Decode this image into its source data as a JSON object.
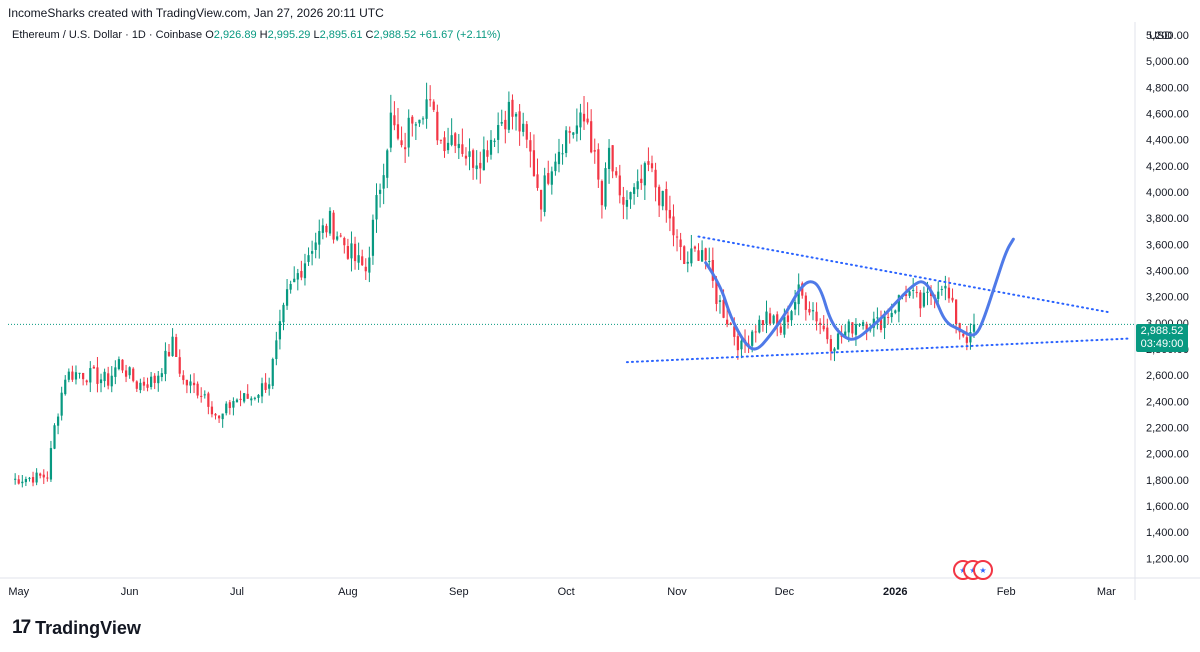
{
  "header": {
    "text": "IncomeSharks created with TradingView.com, Jan 27, 2026 20:11 UTC"
  },
  "symbol": {
    "name": "Ethereum / U.S. Dollar · 1D · Coinbase",
    "o_label": "O",
    "o": "2,926.89",
    "h_label": "H",
    "h": "2,995.29",
    "l_label": "L",
    "l": "2,895.61",
    "c_label": "C",
    "c": "2,988.52",
    "change": "+61.67 (+2.11%)"
  },
  "currency": "USD",
  "last_price": {
    "price": "2,988.52",
    "countdown": "03:49:00"
  },
  "colors": {
    "up": "#089981",
    "down": "#f23645",
    "line": "#2962ff",
    "curve": "#4f7ae8"
  },
  "footer": {
    "brand": "TradingView"
  },
  "chart_data": {
    "type": "candlestick",
    "title": "Ethereum / U.S. Dollar · 1D · Coinbase",
    "ylabel": "USD",
    "ylim": [
      1050,
      5300
    ],
    "y_ticks": [
      "1,200.00",
      "1,400.00",
      "1,600.00",
      "1,800.00",
      "2,000.00",
      "2,200.00",
      "2,400.00",
      "2,600.00",
      "2,800.00",
      "3,000.00",
      "3,200.00",
      "3,400.00",
      "3,600.00",
      "3,800.00",
      "4,000.00",
      "4,200.00",
      "4,400.00",
      "4,600.00",
      "4,800.00",
      "5,000.00",
      "5,200.00"
    ],
    "y_tick_values": [
      1200,
      1400,
      1600,
      1800,
      2000,
      2200,
      2400,
      2600,
      2800,
      3000,
      3200,
      3400,
      3600,
      3800,
      4000,
      4200,
      4400,
      4600,
      4800,
      5000,
      5200
    ],
    "x_labels": [
      "May",
      "Jun",
      "Jul",
      "Aug",
      "Sep",
      "Oct",
      "Nov",
      "Dec",
      "2026",
      "Feb",
      "Mar"
    ],
    "x_label_days": [
      0,
      31,
      61,
      92,
      123,
      153,
      184,
      214,
      245,
      276,
      304
    ],
    "x_range_days": [
      -3,
      312
    ],
    "close_series_anchors": [
      [
        -2,
        1800
      ],
      [
        8,
        1830
      ],
      [
        10,
        2200
      ],
      [
        13,
        2600
      ],
      [
        17,
        2620
      ],
      [
        25,
        2560
      ],
      [
        28,
        2700
      ],
      [
        33,
        2530
      ],
      [
        38,
        2560
      ],
      [
        43,
        2840
      ],
      [
        46,
        2550
      ],
      [
        52,
        2460
      ],
      [
        56,
        2250
      ],
      [
        60,
        2410
      ],
      [
        65,
        2430
      ],
      [
        70,
        2560
      ],
      [
        75,
        3200
      ],
      [
        82,
        3600
      ],
      [
        87,
        3770
      ],
      [
        94,
        3480
      ],
      [
        97,
        3400
      ],
      [
        100,
        3900
      ],
      [
        104,
        4560
      ],
      [
        107,
        4280
      ],
      [
        110,
        4600
      ],
      [
        114,
        4700
      ],
      [
        118,
        4400
      ],
      [
        122,
        4450
      ],
      [
        126,
        4250
      ],
      [
        130,
        4300
      ],
      [
        133,
        4480
      ],
      [
        137,
        4630
      ],
      [
        140,
        4500
      ],
      [
        143,
        4280
      ],
      [
        146,
        3950
      ],
      [
        149,
        4250
      ],
      [
        153,
        4450
      ],
      [
        159,
        4550
      ],
      [
        163,
        3900
      ],
      [
        165,
        4300
      ],
      [
        168,
        3900
      ],
      [
        173,
        4000
      ],
      [
        176,
        4180
      ],
      [
        181,
        3850
      ],
      [
        186,
        3450
      ],
      [
        191,
        3580
      ],
      [
        195,
        3200
      ],
      [
        199,
        2980
      ],
      [
        202,
        2800
      ],
      [
        205,
        2950
      ],
      [
        209,
        3050
      ],
      [
        213,
        2940
      ],
      [
        218,
        3230
      ],
      [
        222,
        3100
      ],
      [
        227,
        2850
      ],
      [
        230,
        2900
      ],
      [
        235,
        3030
      ],
      [
        240,
        2990
      ],
      [
        244,
        3100
      ],
      [
        248,
        3250
      ],
      [
        252,
        3130
      ],
      [
        255,
        3220
      ],
      [
        258,
        3320
      ],
      [
        261,
        3100
      ],
      [
        263,
        2950
      ],
      [
        266,
        2870
      ],
      [
        267,
        2988
      ]
    ],
    "annotations": {
      "upper_trendline": [
        [
          190,
          3660
        ],
        [
          305,
          3080
        ]
      ],
      "lower_trendline": [
        [
          170,
          2700
        ],
        [
          310,
          2880
        ]
      ],
      "projection_curve": [
        [
          192,
          3460
        ],
        [
          196,
          3300
        ],
        [
          199,
          3040
        ],
        [
          203,
          2840
        ],
        [
          206,
          2780
        ],
        [
          210,
          2900
        ],
        [
          215,
          3100
        ],
        [
          218,
          3250
        ],
        [
          221,
          3330
        ],
        [
          224,
          3280
        ],
        [
          227,
          3000
        ],
        [
          231,
          2880
        ],
        [
          234,
          2870
        ],
        [
          238,
          2960
        ],
        [
          242,
          3060
        ],
        [
          246,
          3180
        ],
        [
          250,
          3290
        ],
        [
          253,
          3330
        ],
        [
          256,
          3200
        ],
        [
          259,
          3000
        ],
        [
          263,
          2950
        ],
        [
          266,
          2900
        ],
        [
          268,
          2920
        ],
        [
          270,
          3050
        ],
        [
          273,
          3300
        ],
        [
          276,
          3550
        ],
        [
          278,
          3640
        ]
      ],
      "current_price_line": 2988.52
    }
  }
}
